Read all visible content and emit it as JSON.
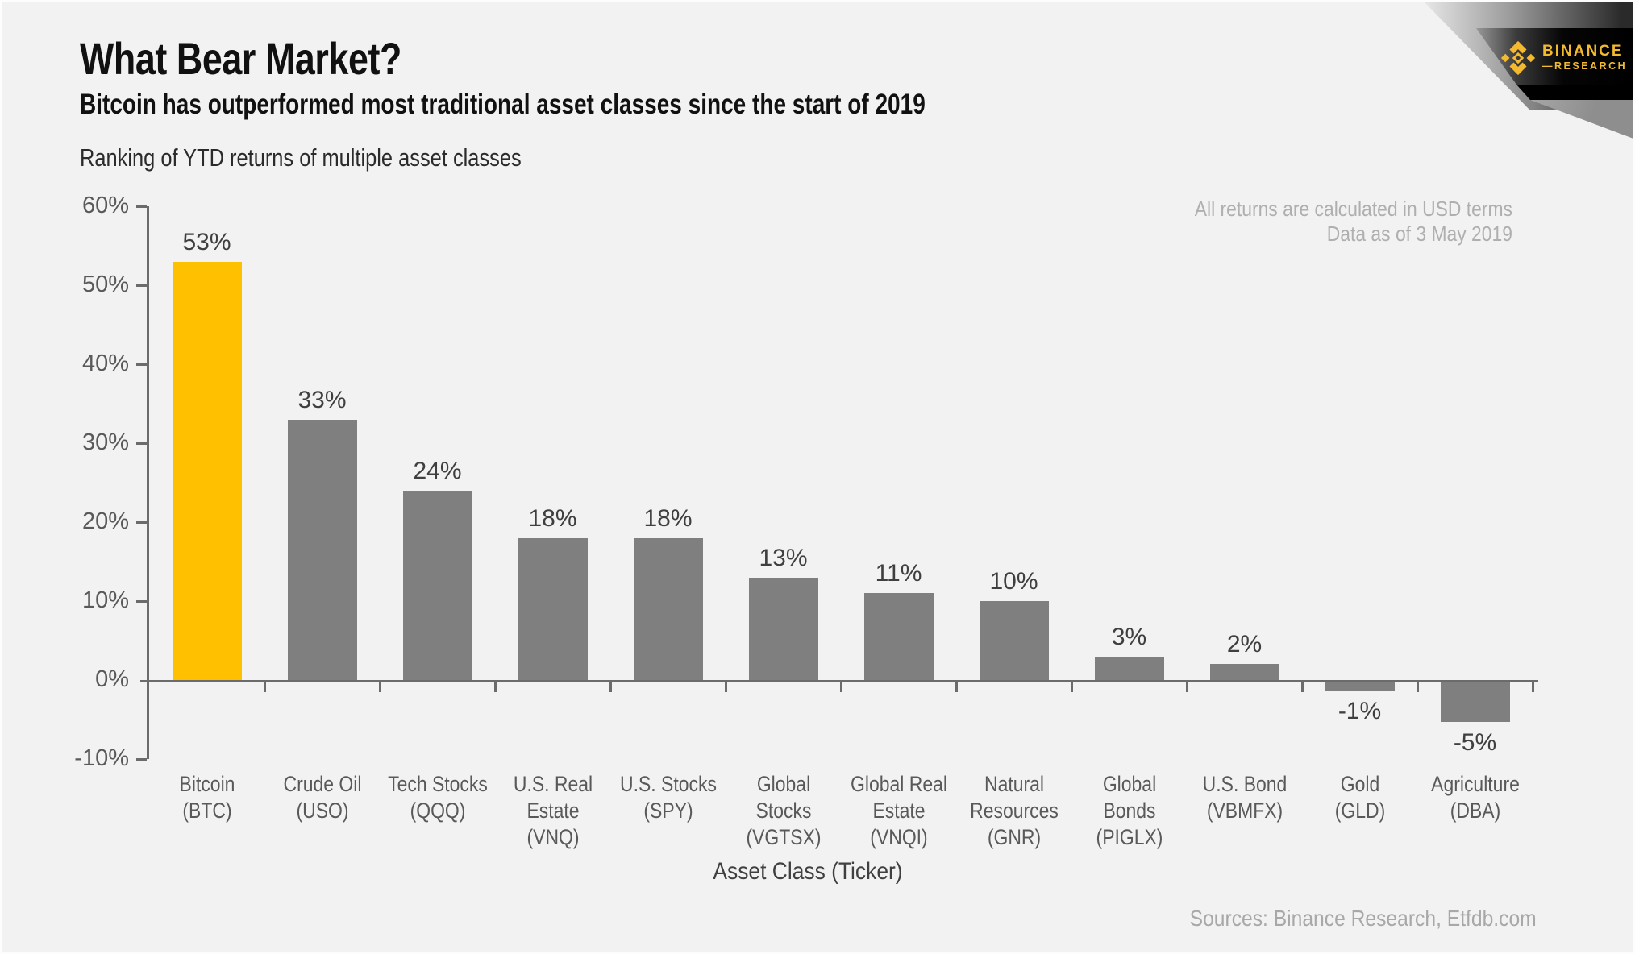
{
  "header": {
    "title": "What Bear Market?",
    "subtitle": "Bitcoin has outperformed most traditional asset classes since the start of 2019",
    "description": "Ranking of YTD returns of multiple asset classes"
  },
  "annotations": {
    "note_line1": "All returns are calculated in USD terms",
    "note_line2": "Data as of 3 May 2019"
  },
  "brand": {
    "name": "BINANCE",
    "sub_name": "—RESEARCH",
    "logo_color": "#F3BA2F"
  },
  "footer": {
    "sources": "Sources: Binance Research, Etfdb.com"
  },
  "chart_data": {
    "type": "bar",
    "title": "Ranking of YTD returns of multiple asset classes",
    "xlabel": "Asset Class (Ticker)",
    "ylabel": "",
    "ylim": [
      -10,
      60
    ],
    "grid": false,
    "legend": "none",
    "y_ticks": [
      60,
      50,
      40,
      30,
      20,
      10,
      0,
      -10
    ],
    "y_tick_labels": [
      "60%",
      "50%",
      "40%",
      "30%",
      "20%",
      "10%",
      "0%",
      "-10%"
    ],
    "categories": [
      "Bitcoin (BTC)",
      "Crude Oil (USO)",
      "Tech Stocks (QQQ)",
      "U.S. Real Estate (VNQ)",
      "U.S. Stocks (SPY)",
      "Global Stocks (VGTSX)",
      "Global Real Estate (VNQI)",
      "Natural Resources (GNR)",
      "Global Bonds (PIGLX)",
      "U.S. Bond (VBMFX)",
      "Gold (GLD)",
      "Agriculture (DBA)"
    ],
    "category_label_lines": [
      [
        "Bitcoin",
        "(BTC)"
      ],
      [
        "Crude Oil",
        "(USO)"
      ],
      [
        "Tech Stocks",
        "(QQQ)"
      ],
      [
        "U.S. Real",
        "Estate",
        "(VNQ)"
      ],
      [
        "U.S. Stocks",
        "(SPY)"
      ],
      [
        "Global Stocks",
        "(VGTSX)"
      ],
      [
        "Global Real",
        "Estate",
        "(VNQI)"
      ],
      [
        "Natural",
        "Resources",
        "(GNR)"
      ],
      [
        "Global Bonds",
        "(PIGLX)"
      ],
      [
        "U.S. Bond",
        "(VBMFX)"
      ],
      [
        "Gold",
        "(GLD)"
      ],
      [
        "Agriculture",
        "(DBA)"
      ]
    ],
    "values": [
      53,
      33,
      24,
      18,
      18,
      13,
      11,
      10,
      3,
      2,
      -1,
      -5
    ],
    "value_labels": [
      "53%",
      "33%",
      "24%",
      "18%",
      "18%",
      "13%",
      "11%",
      "10%",
      "3%",
      "2%",
      "-1%",
      "-5%"
    ],
    "highlight_index": 0,
    "colors": {
      "highlight": "#FFC000",
      "default": "#7F7F7F",
      "axis": "#6B6B6B"
    }
  }
}
